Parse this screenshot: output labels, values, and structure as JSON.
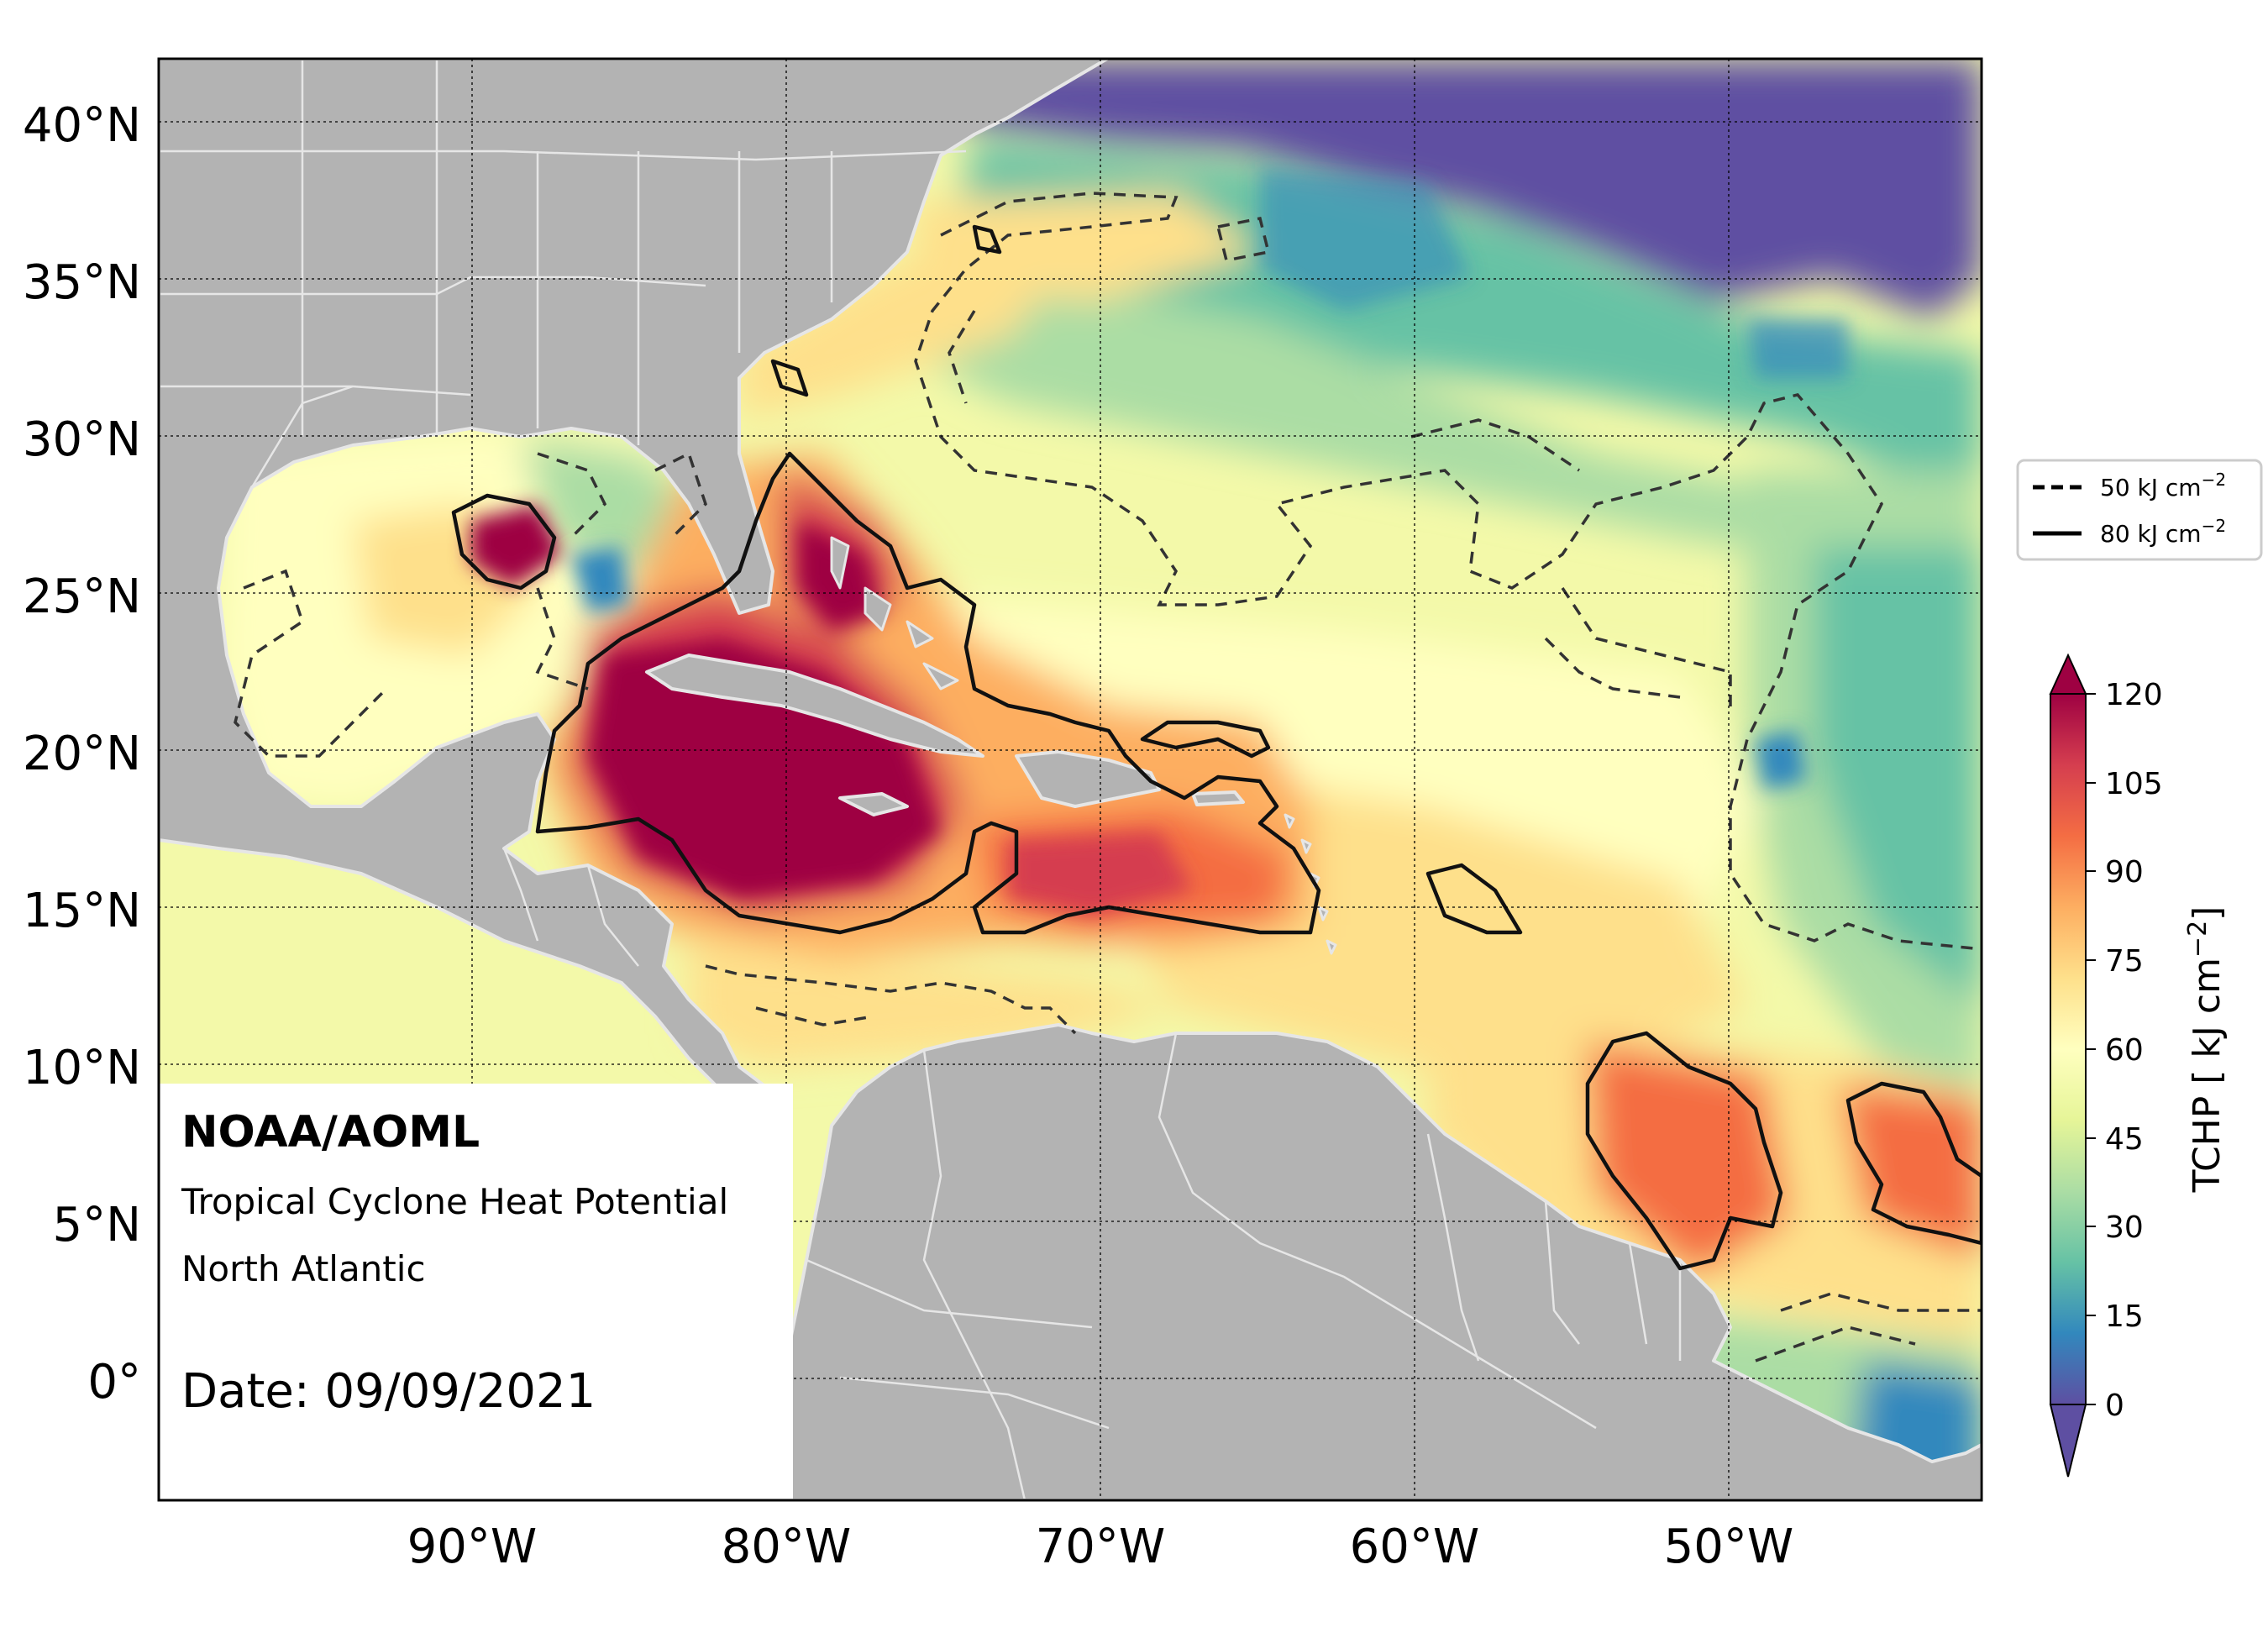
{
  "map": {
    "lat_ticks": [
      "40°N",
      "35°N",
      "30°N",
      "25°N",
      "20°N",
      "15°N",
      "10°N",
      "5°N",
      "0°"
    ],
    "lon_ticks": [
      "90°W",
      "80°W",
      "70°W",
      "60°W",
      "50°W"
    ],
    "extent": {
      "lon_min": -100,
      "lon_max": -42,
      "lat_min": -4,
      "lat_max": 42
    },
    "land_color": "#b3b3b3",
    "border_color": "#e6e6e6",
    "ocean_palette": "Spectral_r"
  },
  "legend": {
    "items": [
      {
        "style": "dashed",
        "label": "50 kJ cm",
        "sup": "−2"
      },
      {
        "style": "solid",
        "label": "80 kJ cm",
        "sup": "−2"
      }
    ]
  },
  "colorbar": {
    "title": "TCHP [ kJ cm",
    "title_sup": "−2",
    "title_close": "]",
    "ticks": [
      "120",
      "105",
      "90",
      "75",
      "60",
      "45",
      "30",
      "15",
      "0"
    ],
    "vmin": 0,
    "vmax": 120,
    "colors": [
      "#5e4fa2",
      "#3288bd",
      "#66c2a5",
      "#abdda4",
      "#e6f598",
      "#ffffbf",
      "#fee08b",
      "#fdae61",
      "#f46d43",
      "#d53e4f",
      "#9e0142"
    ]
  },
  "info": {
    "org": "NOAA/AOML",
    "product": "Tropical Cyclone Heat Potential",
    "region": "North Atlantic",
    "date": "Date: 09/09/2021"
  }
}
